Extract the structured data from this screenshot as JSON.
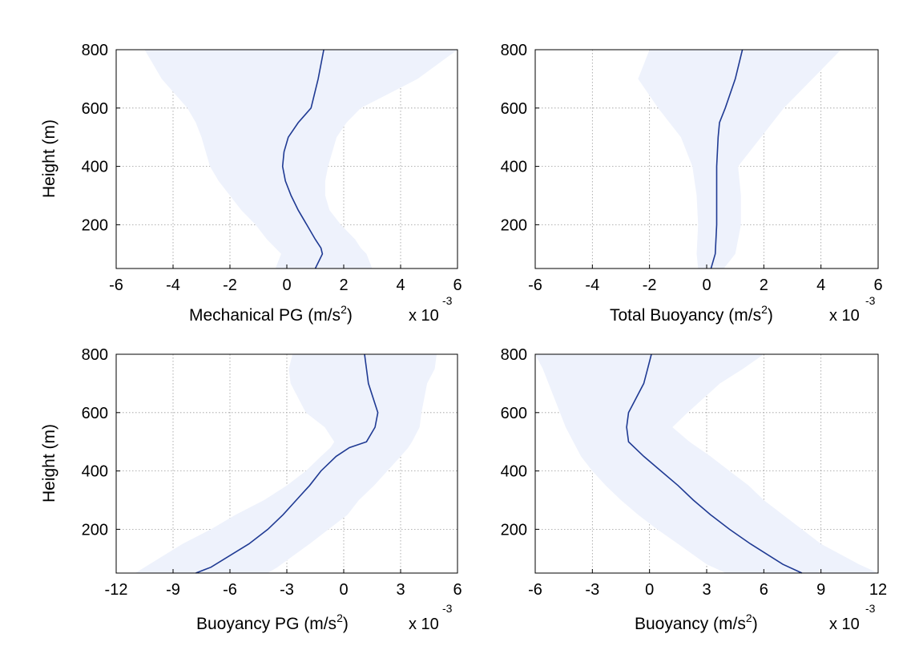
{
  "chart_data": [
    {
      "type": "line",
      "xlabel": "Mechanical PG (m/s",
      "xlabel_sup": "2",
      "xlabel_close": ")",
      "ylabel": "Height (m)",
      "multiplier_text": "x 10",
      "multiplier_exp": "-3",
      "xlim": [
        -6,
        6
      ],
      "ylim": [
        50,
        800
      ],
      "xticks": [
        -6,
        -4,
        -2,
        0,
        2,
        4,
        6
      ],
      "yticks": [
        200,
        400,
        600,
        800
      ],
      "grid": true,
      "band_color": "#eef2fc",
      "line_color": "#1f3a93",
      "series": [
        {
          "x": [
            1.0,
            1.25,
            1.2,
            1.0,
            0.7,
            0.4,
            0.15,
            -0.05,
            -0.15,
            -0.1,
            0.05,
            0.4,
            0.85,
            1.1,
            1.3
          ],
          "y": [
            50,
            100,
            120,
            150,
            200,
            250,
            300,
            350,
            400,
            450,
            500,
            550,
            600,
            700,
            800
          ],
          "lower": [
            -0.4,
            -0.2,
            -0.4,
            -0.7,
            -1.1,
            -1.6,
            -2.0,
            -2.4,
            -2.7,
            -2.85,
            -3.0,
            -3.2,
            -3.5,
            -4.4,
            -5.0
          ],
          "upper": [
            3.0,
            2.8,
            2.6,
            2.4,
            1.9,
            1.5,
            1.35,
            1.35,
            1.45,
            1.6,
            1.75,
            2.1,
            2.6,
            4.6,
            6.0
          ]
        }
      ]
    },
    {
      "type": "line",
      "xlabel": "Total Buoyancy (m/s",
      "xlabel_sup": "2",
      "xlabel_close": ")",
      "ylabel": "",
      "multiplier_text": "x 10",
      "multiplier_exp": "-3",
      "xlim": [
        -6,
        6
      ],
      "ylim": [
        50,
        800
      ],
      "xticks": [
        -6,
        -4,
        -2,
        0,
        2,
        4,
        6
      ],
      "yticks": [
        200,
        400,
        600,
        800
      ],
      "grid": true,
      "band_color": "#eef2fc",
      "line_color": "#1f3a93",
      "series": [
        {
          "x": [
            0.15,
            0.3,
            0.35,
            0.35,
            0.35,
            0.4,
            0.45,
            0.65,
            1.0,
            1.25
          ],
          "y": [
            50,
            100,
            200,
            300,
            400,
            500,
            550,
            600,
            700,
            800
          ],
          "lower": [
            -0.3,
            -0.35,
            -0.3,
            -0.35,
            -0.5,
            -0.9,
            -1.3,
            -1.7,
            -2.4,
            -2.0
          ],
          "upper": [
            0.6,
            1.0,
            1.2,
            1.2,
            1.1,
            1.9,
            2.3,
            2.7,
            3.7,
            4.7
          ]
        }
      ]
    },
    {
      "type": "line",
      "xlabel": "Buoyancy PG (m/s",
      "xlabel_sup": "2",
      "xlabel_close": ")",
      "ylabel": "Height (m)",
      "multiplier_text": "x 10",
      "multiplier_exp": "-3",
      "xlim": [
        -12,
        6
      ],
      "ylim": [
        50,
        800
      ],
      "xticks": [
        -12,
        -9,
        -6,
        -3,
        0,
        3,
        6
      ],
      "yticks": [
        200,
        400,
        600,
        800
      ],
      "grid": true,
      "band_color": "#eef2fc",
      "line_color": "#1f3a93",
      "series": [
        {
          "x": [
            -7.8,
            -7.0,
            -5.0,
            -4.0,
            -3.2,
            -2.5,
            -1.8,
            -1.2,
            -0.4,
            0.3,
            1.2,
            1.65,
            1.8,
            1.3,
            1.2,
            1.1
          ],
          "y": [
            50,
            70,
            150,
            200,
            250,
            300,
            350,
            400,
            450,
            480,
            500,
            550,
            600,
            700,
            750,
            800
          ],
          "lower": [
            -11.0,
            -10.5,
            -8.5,
            -7.0,
            -5.7,
            -4.2,
            -3.0,
            -2.0,
            -1.2,
            -0.7,
            -0.5,
            -1.0,
            -2.0,
            -2.8,
            -2.9,
            -2.7
          ],
          "upper": [
            -4.0,
            -3.5,
            -1.8,
            -0.8,
            0.2,
            0.8,
            1.6,
            2.3,
            3.0,
            3.4,
            3.6,
            4.0,
            4.1,
            4.4,
            4.8,
            4.9
          ]
        }
      ]
    },
    {
      "type": "line",
      "xlabel": "Buoyancy (m/s",
      "xlabel_sup": "2",
      "xlabel_close": ")",
      "ylabel": "",
      "multiplier_text": "x 10",
      "multiplier_exp": "-3",
      "xlim": [
        -6,
        12
      ],
      "ylim": [
        50,
        800
      ],
      "xticks": [
        -6,
        -3,
        0,
        3,
        6,
        9,
        12
      ],
      "yticks": [
        200,
        400,
        600,
        800
      ],
      "grid": true,
      "band_color": "#eef2fc",
      "line_color": "#1f3a93",
      "series": [
        {
          "x": [
            8.0,
            7.0,
            5.3,
            4.2,
            3.2,
            2.3,
            1.5,
            0.6,
            -0.3,
            -1.1,
            -1.2,
            -1.1,
            -0.3,
            -0.1,
            0.1
          ],
          "y": [
            50,
            80,
            150,
            200,
            250,
            300,
            350,
            400,
            450,
            500,
            550,
            600,
            700,
            750,
            800
          ],
          "lower": [
            4.0,
            3.0,
            1.5,
            0.4,
            -0.6,
            -1.5,
            -2.3,
            -3.0,
            -3.6,
            -4.0,
            -4.4,
            -4.7,
            -5.3,
            -5.6,
            -6.0
          ],
          "upper": [
            12.0,
            11.0,
            9.0,
            8.0,
            7.0,
            6.0,
            5.2,
            4.2,
            3.2,
            2.1,
            1.2,
            2.0,
            3.7,
            4.9,
            6.0
          ]
        }
      ]
    }
  ]
}
